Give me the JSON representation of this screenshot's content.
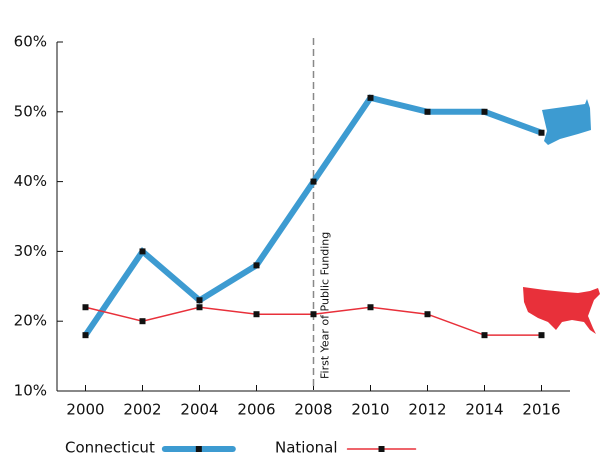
{
  "chart_data": {
    "type": "line",
    "x": [
      2000,
      2002,
      2004,
      2006,
      2008,
      2010,
      2012,
      2014,
      2016
    ],
    "series": [
      {
        "name": "Connecticut",
        "color": "#3d9bd1",
        "values": [
          18,
          30,
          23,
          28,
          40,
          52,
          50,
          50,
          47
        ]
      },
      {
        "name": "National",
        "color": "#e8303a",
        "values": [
          22,
          20,
          22,
          21,
          21,
          22,
          21,
          18,
          18
        ]
      }
    ],
    "xlim": [
      1999,
      2017
    ],
    "xticks": [
      2000,
      2002,
      2004,
      2006,
      2008,
      2010,
      2012,
      2014,
      2016
    ],
    "ylim": [
      10,
      60
    ],
    "yticks": [
      {
        "value": 10,
        "label": "10%"
      },
      {
        "value": 20,
        "label": "20%"
      },
      {
        "value": 30,
        "label": "30%"
      },
      {
        "value": 40,
        "label": "40%"
      },
      {
        "value": 50,
        "label": "50%"
      },
      {
        "value": 60,
        "label": "60%"
      }
    ],
    "annotation": {
      "x": 2008,
      "text": "First Year of Public Funding"
    },
    "marker_color": "#111111"
  }
}
